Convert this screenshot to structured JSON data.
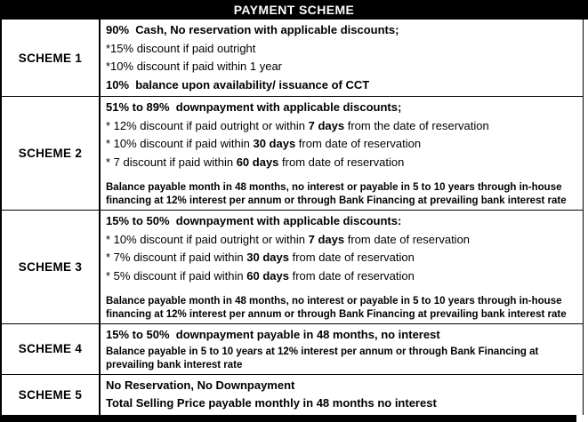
{
  "header": {
    "title": "PAYMENT SCHEME"
  },
  "colors": {
    "header_bg": "#000000",
    "header_text": "#ffffff",
    "border": "#000000",
    "body_bg": "#ffffff",
    "text": "#000000"
  },
  "schemes": [
    {
      "label": "SCHEME 1",
      "heading": "90%  Cash, No reservation with applicable discounts;",
      "items": [
        "*15% discount if paid outright",
        "*10% discount if paid within 1 year"
      ],
      "footer": "10%  balance upon availability/ issuance of CCT"
    },
    {
      "label": "SCHEME 2",
      "heading": "51% to 89%  downpayment with applicable discounts;",
      "discounts": [
        {
          "pre": "* 12% discount if paid outright or within ",
          "days": "7 days",
          "post": " from the date of reservation"
        },
        {
          "pre": "* 10% discount if paid within ",
          "days": "30 days",
          "post": " from date of reservation"
        },
        {
          "pre": "* 7 discount if paid within ",
          "days": "60 days",
          "post": " from date of reservation"
        }
      ],
      "note": "Balance payable month in 48 months, no interest or payable in 5 to 10 years through in-house financing at 12% interest per annum or through Bank Financing at prevailing bank interest rate"
    },
    {
      "label": "SCHEME 3",
      "heading": "15% to 50%  downpayment with applicable discounts:",
      "discounts": [
        {
          "pre": "* 10% discount if paid outright or within ",
          "days": "7 days",
          "post": " from date of reservation"
        },
        {
          "pre": "* 7% discount if paid within ",
          "days": "30 days",
          "post": " from date of reservation"
        },
        {
          "pre": "* 5% discount if paid within ",
          "days": "60 days",
          "post": " from date of reservation"
        }
      ],
      "note": "Balance payable month in 48 months, no interest or payable in 5 to 10 years through in-house financing at 12% interest per annum or through Bank Financing at prevailing bank interest rate"
    },
    {
      "label": "SCHEME 4",
      "heading": "15% to 50%  downpayment payable in 48 months, no interest",
      "note": "Balance payable in 5 to 10 years at 12% interest per annum or through Bank Financing at prevailing bank interest rate"
    },
    {
      "label": "SCHEME 5",
      "heading": "No Reservation, No Downpayment",
      "footer": "Total Selling Price payable monthly in 48 months no interest"
    }
  ]
}
